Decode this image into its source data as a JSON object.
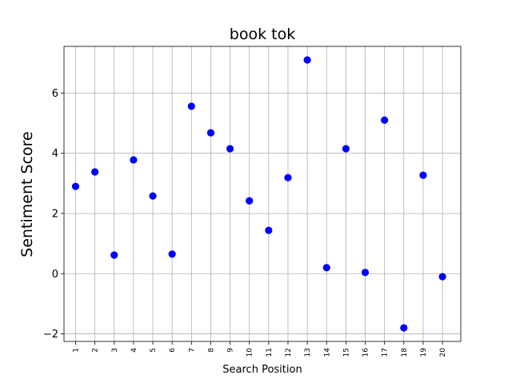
{
  "chart_data": {
    "type": "scatter",
    "title": "book tok",
    "xlabel": "Search Position",
    "ylabel": "Sentiment Score",
    "x": [
      1,
      2,
      3,
      4,
      5,
      6,
      7,
      8,
      9,
      10,
      11,
      12,
      13,
      14,
      15,
      16,
      17,
      18,
      19,
      20
    ],
    "y": [
      2.9,
      3.38,
      0.62,
      3.78,
      2.58,
      0.65,
      5.56,
      4.68,
      4.15,
      2.42,
      1.44,
      3.19,
      7.1,
      0.2,
      4.15,
      0.04,
      5.1,
      -1.8,
      3.27,
      -0.1
    ],
    "xticks": [
      "1",
      "2",
      "3",
      "4",
      "5",
      "6",
      "7",
      "8",
      "9",
      "10",
      "11",
      "12",
      "13",
      "14",
      "15",
      "16",
      "17",
      "18",
      "19",
      "20"
    ],
    "xlim": [
      0.4,
      20.95
    ],
    "ylim": [
      -2.25,
      7.55
    ],
    "yticks": [
      -2,
      0,
      2,
      4,
      6
    ],
    "ytick_labels": [
      "−2",
      "0",
      "2",
      "4",
      "6"
    ],
    "grid": true,
    "marker_color": "#0000ff"
  }
}
